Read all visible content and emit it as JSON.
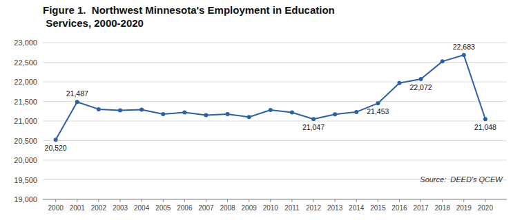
{
  "chart_data": {
    "type": "line",
    "title": "Figure 1.  Northwest Minnesota's Employment in Education\n Services, 2000-2020",
    "x": [
      2000,
      2001,
      2002,
      2003,
      2004,
      2005,
      2006,
      2007,
      2008,
      2009,
      2010,
      2011,
      2012,
      2013,
      2014,
      2015,
      2016,
      2017,
      2018,
      2019,
      2020
    ],
    "values": [
      20520,
      21487,
      21300,
      21270,
      21290,
      21175,
      21220,
      21150,
      21175,
      21100,
      21280,
      21220,
      21047,
      21170,
      21230,
      21453,
      21970,
      22072,
      22520,
      22683,
      21048
    ],
    "value_labels": [
      "20,520",
      "21,487",
      null,
      null,
      null,
      null,
      null,
      null,
      null,
      null,
      null,
      null,
      "21,047",
      null,
      null,
      "21,453",
      null,
      "22,072",
      null,
      "22,683",
      "21,048"
    ],
    "data_labels": true,
    "color": "#2E5FA3",
    "marker": "circle",
    "xlim": [
      1999.4,
      2021.0
    ],
    "xticks": [
      2000,
      2001,
      2002,
      2003,
      2004,
      2005,
      2006,
      2007,
      2008,
      2009,
      2010,
      2011,
      2012,
      2013,
      2014,
      2015,
      2016,
      2017,
      2018,
      2019,
      2020
    ],
    "ylim": [
      19000,
      23000
    ],
    "yticks": [
      {
        "value": 19000,
        "label": "19,000"
      },
      {
        "value": 19500,
        "label": "19,500"
      },
      {
        "value": 20000,
        "label": "20,000"
      },
      {
        "value": 20500,
        "label": "20,500"
      },
      {
        "value": 21000,
        "label": "21,000"
      },
      {
        "value": 21500,
        "label": "21,500"
      },
      {
        "value": 22000,
        "label": "22,000"
      },
      {
        "value": 22500,
        "label": "22,500"
      },
      {
        "value": 23000,
        "label": "23,000"
      }
    ],
    "grid": true,
    "annotations": [
      {
        "text": "Source:  DEED's QCEW",
        "x": 2020.8,
        "y": 19380
      }
    ]
  }
}
